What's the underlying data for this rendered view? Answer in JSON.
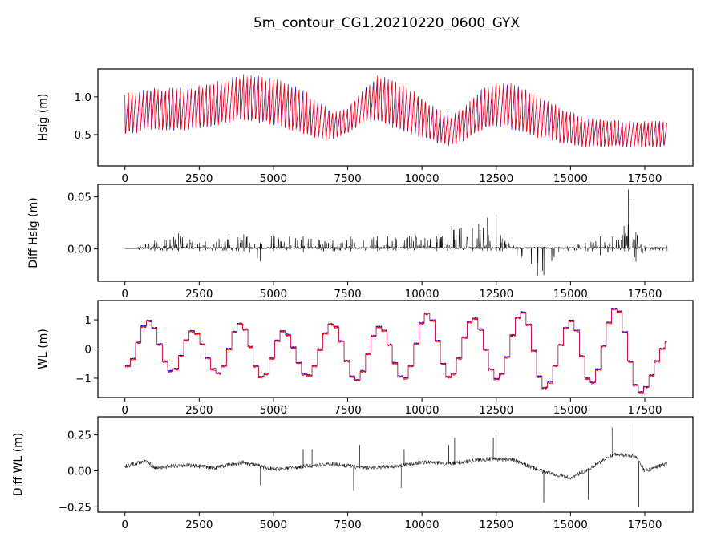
{
  "chart_data": [
    {
      "type": "line",
      "title": "5m_contour_CG1.20210220_0600_GYX",
      "panel": "hsig",
      "ylabel": "Hsig (m)",
      "xlim": [
        -910,
        19120
      ],
      "ylim": [
        0.085,
        1.37
      ],
      "xticks": [
        0,
        2500,
        5000,
        7500,
        10000,
        12500,
        15000,
        17500
      ],
      "xtick_labels": [
        "0",
        "2500",
        "5000",
        "7500",
        "10000",
        "12500",
        "15000",
        "17500"
      ],
      "yticks": [
        0.5,
        1.0
      ],
      "ytick_labels": [
        "0.5",
        "1.0"
      ],
      "series_colors": {
        "reference": "#0000ff",
        "model": "#ff0000"
      },
      "envelope_x": [
        0,
        1000,
        2000,
        3000,
        4000,
        5000,
        6000,
        6500,
        7000,
        7500,
        8000,
        8500,
        9000,
        9500,
        10000,
        10500,
        11000,
        11500,
        12000,
        12500,
        13000,
        13500,
        14000,
        14500,
        15000,
        15500,
        16000,
        17000,
        18250
      ],
      "envelope_upper": [
        1.05,
        1.12,
        1.12,
        1.2,
        1.3,
        1.25,
        1.1,
        0.95,
        0.8,
        0.85,
        1.1,
        1.28,
        1.25,
        1.15,
        1.0,
        0.85,
        0.75,
        0.9,
        1.1,
        1.2,
        1.18,
        1.1,
        1.0,
        0.9,
        0.8,
        0.75,
        0.7,
        0.68,
        0.68
      ],
      "envelope_lower": [
        0.3,
        0.35,
        0.35,
        0.4,
        0.45,
        0.4,
        0.3,
        0.25,
        0.3,
        0.4,
        0.5,
        0.45,
        0.35,
        0.3,
        0.25,
        0.22,
        0.2,
        0.25,
        0.35,
        0.4,
        0.35,
        0.3,
        0.25,
        0.2,
        0.2,
        0.18,
        0.2,
        0.2,
        0.2
      ]
    },
    {
      "type": "line",
      "panel": "diff_hsig",
      "ylabel": "Diff Hsig (m)",
      "xlim": [
        -910,
        19120
      ],
      "ylim": [
        -0.031,
        0.062
      ],
      "xticks": [
        0,
        2500,
        5000,
        7500,
        10000,
        12500,
        15000,
        17500
      ],
      "xtick_labels": [
        "0",
        "2500",
        "5000",
        "7500",
        "10000",
        "12500",
        "15000",
        "17500"
      ],
      "yticks": [
        0.0,
        0.05
      ],
      "ytick_labels": [
        "0.00",
        "0.05"
      ],
      "color": "#000000",
      "spike_x": [
        0,
        1000,
        1800,
        2500,
        3500,
        4000,
        4550,
        5000,
        6000,
        7000,
        7600,
        8500,
        9500,
        10500,
        11000,
        11700,
        12200,
        12500,
        12700,
        13200,
        13900,
        14100,
        14600,
        15500,
        16000,
        16400,
        16800,
        16950,
        17200,
        17500,
        18250
      ],
      "spike_upper": [
        0.0,
        0.008,
        0.015,
        0.006,
        0.012,
        0.014,
        0.006,
        0.014,
        0.012,
        0.008,
        0.012,
        0.012,
        0.014,
        0.012,
        0.022,
        0.02,
        0.03,
        0.033,
        0.01,
        0.003,
        0.002,
        0.002,
        0.002,
        0.006,
        0.012,
        0.012,
        0.022,
        0.057,
        0.016,
        0.003,
        0.003
      ],
      "spike_lower": [
        0.0,
        -0.002,
        -0.002,
        -0.002,
        -0.002,
        -0.002,
        -0.012,
        -0.002,
        -0.003,
        -0.002,
        -0.002,
        -0.002,
        -0.002,
        -0.002,
        -0.002,
        -0.002,
        -0.002,
        -0.002,
        -0.002,
        -0.007,
        -0.025,
        -0.025,
        -0.003,
        -0.002,
        -0.006,
        -0.002,
        -0.002,
        -0.002,
        -0.012,
        -0.002,
        -0.002
      ]
    },
    {
      "type": "line",
      "panel": "wl",
      "ylabel": "WL (m)",
      "xlim": [
        -910,
        19120
      ],
      "ylim": [
        -1.66,
        1.66
      ],
      "xticks": [
        0,
        2500,
        5000,
        7500,
        10000,
        12500,
        15000,
        17500
      ],
      "xtick_labels": [
        "0",
        "2500",
        "5000",
        "7500",
        "10000",
        "12500",
        "15000",
        "17500"
      ],
      "yticks": [
        -1,
        0,
        1
      ],
      "ytick_labels": [
        "−1",
        "0",
        "1"
      ],
      "series_colors": {
        "reference": "#0000ff",
        "model": "#ff0000"
      },
      "extrema_x": [
        0,
        700,
        1500,
        2200,
        3050,
        3800,
        4550,
        5250,
        6050,
        6900,
        7700,
        8500,
        9300,
        10100,
        10850,
        11650,
        12450,
        13300,
        14050,
        14950,
        15600,
        16450,
        17250,
        18250
      ],
      "extrema_y": [
        -0.6,
        0.95,
        -0.8,
        0.6,
        -0.85,
        0.85,
        -1.0,
        0.6,
        -0.95,
        0.85,
        -1.1,
        0.75,
        -1.05,
        1.2,
        -1.0,
        1.05,
        -1.05,
        1.25,
        -1.35,
        0.95,
        -1.2,
        1.4,
        -1.5,
        0.25
      ]
    },
    {
      "type": "line",
      "panel": "diff_wl",
      "ylabel": "Diff WL (m)",
      "xlim": [
        -910,
        19120
      ],
      "ylim": [
        -0.287,
        0.376
      ],
      "xticks": [
        0,
        2500,
        5000,
        7500,
        10000,
        12500,
        15000,
        17500
      ],
      "xtick_labels": [
        "0",
        "2500",
        "5000",
        "7500",
        "10000",
        "12500",
        "15000",
        "17500"
      ],
      "yticks": [
        -0.25,
        0.0,
        0.25
      ],
      "ytick_labels": [
        "−0.25",
        "0.00",
        "0.25"
      ],
      "color": "#000000",
      "baseline_x": [
        0,
        700,
        1000,
        2000,
        3000,
        4000,
        5000,
        6000,
        7000,
        8000,
        9000,
        10000,
        11000,
        12000,
        13000,
        14000,
        15000,
        15500,
        16500,
        17200,
        17500,
        18250
      ],
      "baseline_y": [
        0.03,
        0.07,
        0.02,
        0.04,
        0.02,
        0.06,
        0.01,
        0.03,
        0.05,
        0.02,
        0.03,
        0.06,
        0.05,
        0.08,
        0.08,
        0.0,
        -0.05,
        0.0,
        0.12,
        0.1,
        0.0,
        0.05
      ],
      "spikes_x": [
        4550,
        6000,
        6300,
        7700,
        7900,
        9300,
        9400,
        10900,
        11100,
        12400,
        12500,
        14000,
        14100,
        15600,
        16400,
        17000,
        17300
      ],
      "spikes_y": [
        -0.1,
        0.15,
        0.15,
        -0.14,
        0.18,
        -0.12,
        0.15,
        0.18,
        0.23,
        0.23,
        0.25,
        -0.25,
        -0.22,
        -0.2,
        0.3,
        0.33,
        -0.25
      ]
    }
  ]
}
